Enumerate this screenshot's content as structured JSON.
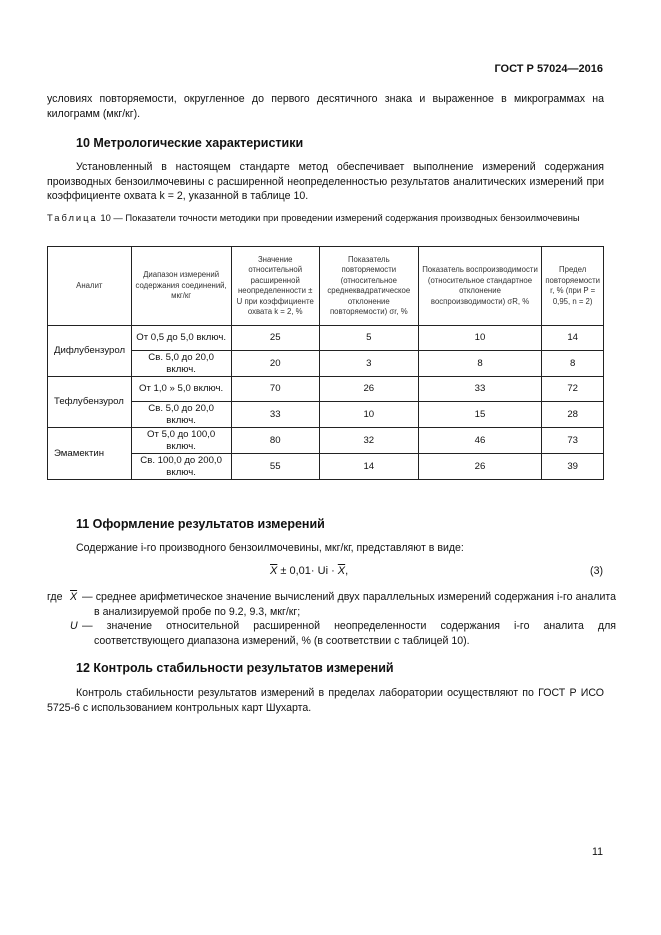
{
  "header": {
    "doc_id": "ГОСТ Р 57024—2016"
  },
  "intro_text": "условиях повторяемости, округленное до первого десятичного знака и выраженное в микрограммах на килограмм (мкг/кг).",
  "section10": {
    "title": "10 Метрологические характеристики",
    "text": "Установленный в настоящем стандарте метод обеспечивает выполнение измерений содержания производных бензоилмочевины с расширенной неопределенностью результатов аналитических измерений при коэффициенте охвата k = 2, указанной в таблице 10."
  },
  "table": {
    "caption_prefix": "Таблица",
    "caption": "10 — Показатели точности методики при проведении измерений содержания производных бензоилмочевины",
    "headers": [
      "Аналит",
      "Диапазон измерений содержания соединений, мкг/кг",
      "Значение относительной расширенной неопределенности ± U при коэффициенте охвата k = 2, %",
      "Показатель повторяемости (относительное среднеквадратическое отклонение повторяемости) σr, %",
      "Показатель воспроизводимости (относительное стандартное отклонение воспроизводимости) σR, %",
      "Предел повторяемости r, % (при P = 0,95, n = 2)"
    ],
    "groups": [
      {
        "analyte": "Дифлубензурол",
        "rows": [
          [
            "От 0,5 до 5,0 включ.",
            "25",
            "5",
            "10",
            "14"
          ],
          [
            "Св. 5,0 до 20,0 включ.",
            "20",
            "3",
            "8",
            "8"
          ]
        ]
      },
      {
        "analyte": "Тефлубензурол",
        "rows": [
          [
            "От 1,0 » 5,0 включ.",
            "70",
            "26",
            "33",
            "72"
          ],
          [
            "Св. 5,0 до 20,0 включ.",
            "33",
            "10",
            "15",
            "28"
          ]
        ]
      },
      {
        "analyte": "Эмамектин",
        "rows": [
          [
            "От 5,0 до 100,0 включ.",
            "80",
            "32",
            "46",
            "73"
          ],
          [
            "Св. 100,0 до 200,0 включ.",
            "55",
            "14",
            "26",
            "39"
          ]
        ]
      }
    ]
  },
  "section11": {
    "title": "11 Оформление результатов измерений",
    "text": "Содержание i-го производного бензоилмочевины, мкг/кг, представляют в виде:",
    "formula_x": "X",
    "formula_mid": " ± 0,01· Ui · ",
    "formula_end": ",",
    "formula_number": "(3)",
    "where": "где",
    "defs": [
      {
        "sym": "X",
        "text": "— среднее арифметическое значение вычислений двух параллельных измерений содержания i-го аналита в анализируемой пробе по 9.2, 9.3, мкг/кг;"
      },
      {
        "sym": "U",
        "text": "— значение относительной расширенной неопределенности содержания i-го аналита для соответствующего диапазона измерений, % (в соответствии с таблицей 10)."
      }
    ]
  },
  "section12": {
    "title": "12 Контроль стабильности результатов измерений",
    "text": "Контроль стабильности результатов измерений в пределах лаборатории осуществляют по ГОСТ Р ИСО 5725-6 с использованием контрольных карт Шухарта."
  },
  "page_number": "11"
}
